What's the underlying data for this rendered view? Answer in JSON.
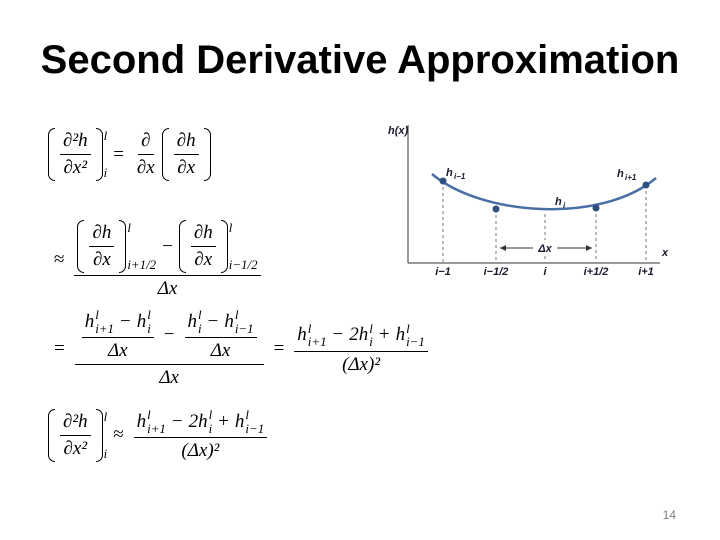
{
  "title": "Second Derivative Approximation",
  "page_number": "14",
  "equations": [
    [
      {
        "paren": [
          {
            "num": [
              "∂²h"
            ],
            "den": [
              "∂x²"
            ]
          }
        ],
        "sup": "l",
        "sub": "i"
      },
      "=",
      {
        "num": [
          "∂"
        ],
        "den": [
          "∂x"
        ]
      },
      {
        "paren": [
          {
            "num": [
              "∂h"
            ],
            "den": [
              "∂x"
            ]
          }
        ]
      }
    ],
    [
      "≈",
      {
        "num": [
          {
            "paren": [
              {
                "num": [
                  "∂h"
                ],
                "den": [
                  "∂x"
                ]
              }
            ],
            "sup": "l",
            "sub": "i+1/2"
          },
          "−",
          {
            "paren": [
              {
                "num": [
                  "∂h"
                ],
                "den": [
                  "∂x"
                ]
              }
            ],
            "sup": "l",
            "sub": "i−1/2"
          }
        ],
        "den": [
          "Δx"
        ]
      }
    ],
    [
      "=",
      {
        "num": [
          {
            "num": [
              {
                "base": "h",
                "sup": "l",
                "sub": "i+1"
              },
              "−",
              {
                "base": "h",
                "sup": "l",
                "sub": "i"
              }
            ],
            "den": [
              "Δx"
            ]
          },
          "−",
          {
            "num": [
              {
                "base": "h",
                "sup": "l",
                "sub": "i"
              },
              "−",
              {
                "base": "h",
                "sup": "l",
                "sub": "i−1"
              }
            ],
            "den": [
              "Δx"
            ]
          }
        ],
        "den": [
          "Δx"
        ]
      },
      "=",
      {
        "num": [
          {
            "base": "h",
            "sup": "l",
            "sub": "i+1"
          },
          "−",
          "2",
          {
            "base": "h",
            "sup": "l",
            "sub": "i"
          },
          "+",
          {
            "base": "h",
            "sup": "l",
            "sub": "i−1"
          }
        ],
        "den": [
          "(Δx)²"
        ]
      }
    ],
    [
      {
        "paren": [
          {
            "num": [
              "∂²h"
            ],
            "den": [
              "∂x²"
            ]
          }
        ],
        "sup": "l",
        "sub": "i"
      },
      "≈",
      {
        "num": [
          {
            "base": "h",
            "sup": "l",
            "sub": "i+1"
          },
          "−",
          "2",
          {
            "base": "h",
            "sup": "l",
            "sub": "i"
          },
          "+",
          {
            "base": "h",
            "sup": "l",
            "sub": "i−1"
          }
        ],
        "den": [
          "(Δx)²"
        ]
      }
    ]
  ],
  "figure": {
    "y_label": "h(x)",
    "x_label": "x",
    "dx_label": "Δx",
    "point_labels": [
      {
        "base": "h",
        "sub": "i−1"
      },
      {
        "base": "h",
        "sub": "i"
      },
      {
        "base": "h",
        "sub": "i+1"
      }
    ],
    "x_labels": [
      "i−1",
      "i−1/2",
      "i",
      "i+1/2",
      "i+1"
    ]
  }
}
